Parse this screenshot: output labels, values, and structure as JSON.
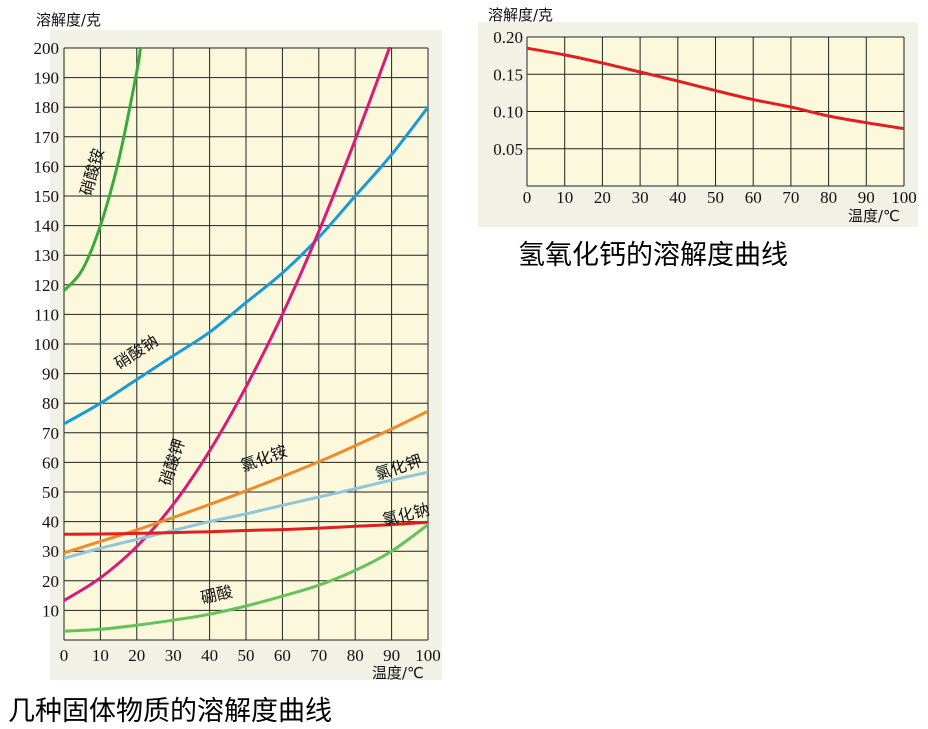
{
  "chart_data": [
    {
      "type": "line",
      "title": "几种固体物质的溶解度曲线",
      "ylabel": "溶解度/克",
      "xlabel": "温度/℃",
      "xlim": [
        0,
        100
      ],
      "ylim": [
        0,
        200
      ],
      "x_ticks": [
        0,
        10,
        20,
        30,
        40,
        50,
        60,
        70,
        80,
        90,
        100
      ],
      "y_ticks": [
        10,
        20,
        30,
        40,
        50,
        60,
        70,
        80,
        90,
        100,
        110,
        120,
        130,
        140,
        150,
        160,
        170,
        180,
        190,
        200
      ],
      "grid": true,
      "series": [
        {
          "name": "硝酸铵",
          "color": "#3aaa3a",
          "x": [
            0,
            5,
            10,
            15,
            20,
            21
          ],
          "y": [
            118,
            125,
            140,
            162,
            192,
            200
          ]
        },
        {
          "name": "硝酸钠",
          "color": "#1a9ad6",
          "x": [
            0,
            10,
            20,
            30,
            40,
            50,
            60,
            70,
            80,
            90,
            100
          ],
          "y": [
            73,
            80,
            88,
            96,
            104,
            114,
            124,
            136,
            150,
            164,
            180
          ]
        },
        {
          "name": "硝酸钾",
          "color": "#d81b7a",
          "x": [
            0,
            10,
            20,
            30,
            40,
            50,
            60,
            70,
            80,
            90
          ],
          "y": [
            13.3,
            21,
            31.6,
            45.8,
            63.9,
            85.5,
            110,
            138,
            169,
            202
          ]
        },
        {
          "name": "氯化铵",
          "color": "#f08a2a",
          "x": [
            0,
            10,
            20,
            30,
            40,
            50,
            60,
            70,
            80,
            90,
            100
          ],
          "y": [
            29.4,
            33.3,
            37.2,
            41.4,
            45.8,
            50.4,
            55.2,
            60.2,
            65.6,
            71.3,
            77.3
          ]
        },
        {
          "name": "氯化钾",
          "color": "#8fc6d8",
          "x": [
            0,
            10,
            20,
            30,
            40,
            50,
            60,
            70,
            80,
            90,
            100
          ],
          "y": [
            27.6,
            31,
            34,
            37,
            40,
            42.6,
            45.5,
            48.3,
            51.1,
            54,
            56.7
          ]
        },
        {
          "name": "氯化钠",
          "color": "#e02020",
          "x": [
            0,
            10,
            20,
            30,
            40,
            50,
            60,
            70,
            80,
            90,
            100
          ],
          "y": [
            35.7,
            35.8,
            36,
            36.3,
            36.6,
            37,
            37.3,
            37.8,
            38.4,
            39,
            39.8
          ]
        },
        {
          "name": "硼酸",
          "color": "#66c25a",
          "x": [
            0,
            10,
            20,
            30,
            40,
            50,
            60,
            70,
            80,
            90,
            100
          ],
          "y": [
            3,
            3.6,
            5,
            6.7,
            8.7,
            11.5,
            14.8,
            18.5,
            23.5,
            30,
            39
          ]
        }
      ]
    },
    {
      "type": "line",
      "title": "氢氧化钙的溶解度曲线",
      "ylabel": "溶解度/克",
      "xlabel": "温度/℃",
      "xlim": [
        0,
        100
      ],
      "ylim": [
        0,
        0.2
      ],
      "x_ticks": [
        0,
        10,
        20,
        30,
        40,
        50,
        60,
        70,
        80,
        90,
        100
      ],
      "y_ticks": [
        "0.05",
        "0.10",
        "0.15",
        "0.20"
      ],
      "grid": true,
      "series": [
        {
          "color": "#e02020",
          "x": [
            0,
            10,
            20,
            30,
            40,
            50,
            60,
            70,
            80,
            90,
            100
          ],
          "y": [
            0.185,
            0.176,
            0.165,
            0.153,
            0.141,
            0.128,
            0.116,
            0.106,
            0.094,
            0.085,
            0.077
          ]
        }
      ]
    }
  ]
}
